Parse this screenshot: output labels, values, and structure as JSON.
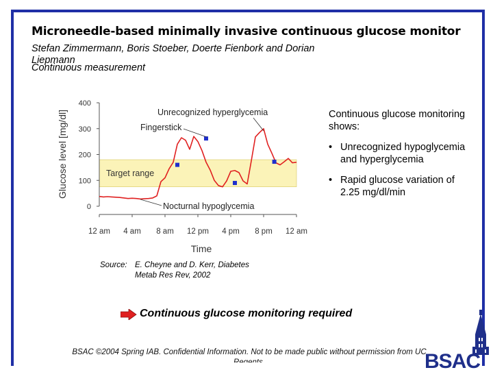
{
  "slide": {
    "title": "Microneedle-based minimally invasive continuous glucose monitor",
    "authors": "Stefan Zimmermann, Boris Stoeber, Doerte Fienbork and Dorian Liepmann",
    "subtitle": "Continuous measurement",
    "side_intro": "Continuous glucose monitoring shows:",
    "bullets": [
      "Unrecognized hypoglycemia and hyperglycemia",
      "Rapid glucose variation of 2.25 mg/dl/min"
    ],
    "source_label": "Source:",
    "source_text": "E. Cheyne and D. Kerr, Diabetes Metab Res Rev, 2002",
    "callout": "Continuous glucose monitoring required",
    "footer": "BSAC ©2004 Spring IAB. Confidential Information. Not to be made public without permission from UC Regents.",
    "logo_text": "BSAC"
  },
  "colors": {
    "frame": "#1f2fa6",
    "trace": "#e02020",
    "target_band": "#fbf3b8",
    "marker": "#1f2fcc",
    "logo": "#1f2f8a",
    "arrow": "#e02020"
  },
  "chart_data": {
    "type": "line",
    "xlabel": "Time",
    "ylabel": "Glucose level [mg/dl]",
    "ylim": [
      0,
      400
    ],
    "yticks": [
      "0",
      "100",
      "200",
      "300",
      "400"
    ],
    "xticks": [
      "12 am",
      "4 am",
      "8 am",
      "12 pm",
      "4 pm",
      "8 pm",
      "12 am"
    ],
    "target_range_label": "Target range",
    "target_range": [
      75,
      180
    ],
    "annotations": [
      "Unrecognized hyperglycemia",
      "Fingerstick",
      "Nocturnal hypoglycemia"
    ],
    "series": [
      {
        "x": [
          0,
          0.5,
          1,
          1.5,
          2,
          2.5,
          3,
          3.5,
          4,
          4.5,
          5,
          5.5,
          6,
          6.5,
          7,
          7.5,
          8,
          8.5,
          9,
          9.5,
          10,
          10.5,
          11,
          11.5,
          12,
          12.5,
          13,
          13.5,
          14,
          14.5,
          15,
          15.5,
          16,
          16.5,
          17,
          17.5,
          18,
          18.5,
          19,
          19.5,
          20,
          20.5,
          21,
          21.5,
          22,
          22.5,
          23,
          23.5,
          24
        ],
        "values": [
          38,
          36,
          37,
          36,
          35,
          34,
          32,
          30,
          31,
          30,
          28,
          29,
          30,
          32,
          40,
          95,
          110,
          145,
          170,
          240,
          265,
          255,
          220,
          270,
          250,
          215,
          170,
          140,
          100,
          80,
          75,
          98,
          135,
          138,
          130,
          98,
          86,
          175,
          268,
          285,
          300,
          240,
          205,
          168,
          160,
          172,
          185,
          168,
          170
        ]
      }
    ],
    "fingerstick_points": [
      {
        "x": 9.5,
        "y": 160
      },
      {
        "x": 13,
        "y": 262
      },
      {
        "x": 16.5,
        "y": 90
      },
      {
        "x": 21.3,
        "y": 172
      }
    ]
  }
}
